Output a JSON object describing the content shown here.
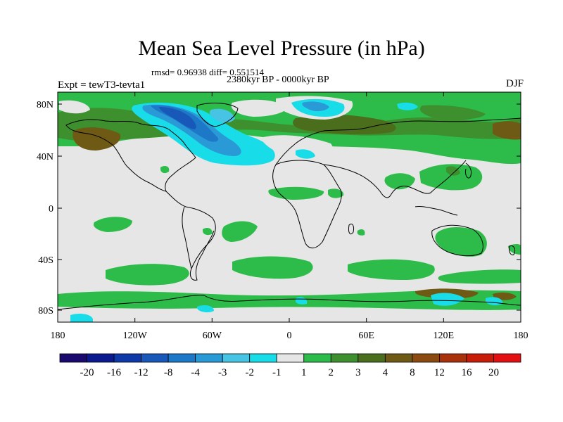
{
  "title": "Mean Sea Level Pressure (in hPa)",
  "stats_line": "rmsd= 0.96938 diff= 0.551514",
  "period": "2380kyr BP - 0000kyr BP",
  "experiment": "Expt = tewT3-tevta1",
  "season": "DJF",
  "lat_ticks": [
    "80N",
    "40N",
    "0",
    "40S",
    "80S"
  ],
  "lon_ticks": [
    "180",
    "120W",
    "60W",
    "0",
    "60E",
    "120E",
    "180"
  ],
  "colorbar": {
    "labels": [
      "-20",
      "-16",
      "-12",
      "-8",
      "-4",
      "-3",
      "-2",
      "-1",
      "1",
      "2",
      "3",
      "4",
      "8",
      "12",
      "16",
      "20"
    ],
    "colors": [
      "#1a0a6e",
      "#0b1a8c",
      "#0d3aa6",
      "#1858b8",
      "#1e78c8",
      "#2a9ad6",
      "#47c4e4",
      "#18dce8",
      "#e6e6e6",
      "#2dbc4a",
      "#3e8f2e",
      "#4b6e1c",
      "#6e5a14",
      "#8a4a10",
      "#a8320c",
      "#c61c08",
      "#e21010"
    ]
  },
  "colors": {
    "background": "#e6e6e6",
    "green": "#2dbc4a",
    "dark_green": "#3e8f2e",
    "olive": "#4b6e1c",
    "brown": "#6e5a14",
    "cyan": "#18dce8",
    "light_blue": "#47c4e4",
    "blue": "#2a9ad6",
    "mid_blue": "#1e78c8",
    "deep_blue": "#1858b8"
  }
}
